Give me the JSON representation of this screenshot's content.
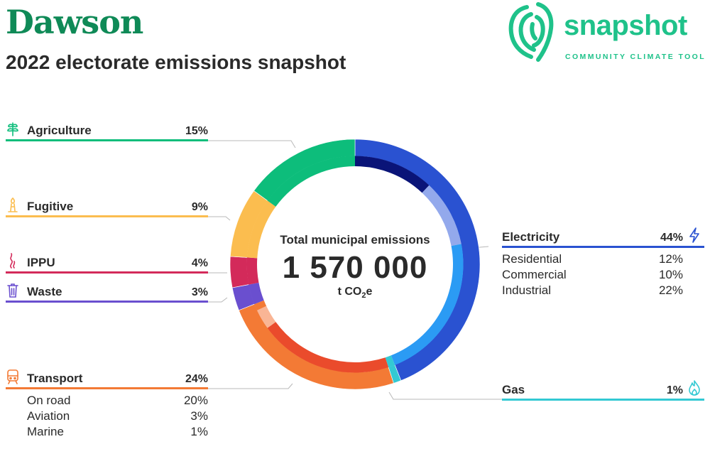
{
  "header": {
    "title": "Dawson",
    "subtitle": "2022 electorate emissions snapshot"
  },
  "logo": {
    "word": "snapshot",
    "tagline": "COMMUNITY CLIMATE TOOL",
    "color": "#1fc28a"
  },
  "center": {
    "label": "Total municipal emissions",
    "value": "1 570 000",
    "unit_prefix": "t CO",
    "unit_sub": "2",
    "unit_suffix": "e"
  },
  "chart_data": {
    "type": "pie",
    "subtype": "donut-with-inner-subsectors",
    "start_angle_deg": 0,
    "direction": "clockwise",
    "sectors": [
      {
        "key": "electricity",
        "name": "Electricity",
        "value": 44,
        "label": "44%",
        "color": "#2a52d1",
        "icon": "lightning-icon",
        "subsectors": [
          {
            "name": "Residential",
            "value": 12,
            "label": "12%",
            "color": "#0a1478"
          },
          {
            "name": "Commercial",
            "value": 10,
            "label": "10%",
            "color": "#93a9ec"
          },
          {
            "name": "Industrial",
            "value": 22,
            "label": "22%",
            "color": "#2b9bf4"
          }
        ]
      },
      {
        "key": "gas",
        "name": "Gas",
        "value": 1,
        "label": "1%",
        "color": "#33c9d3",
        "icon": "flame-icon",
        "subsectors": [
          {
            "name": "",
            "value": 1,
            "label": "",
            "color": "#33c9d3"
          }
        ]
      },
      {
        "key": "transport",
        "name": "Transport",
        "value": 24,
        "label": "24%",
        "color": "#f37a35",
        "icon": "train-icon",
        "subsectors": [
          {
            "name": "On road",
            "value": 20,
            "label": "20%",
            "color": "#ea4b2c"
          },
          {
            "name": "Aviation",
            "value": 3,
            "label": "3%",
            "color": "#f9b595"
          },
          {
            "name": "Marine",
            "value": 1,
            "label": "1%",
            "color": "#f37a35"
          }
        ]
      },
      {
        "key": "waste",
        "name": "Waste",
        "value": 3,
        "label": "3%",
        "color": "#6a4fcf",
        "icon": "bin-icon",
        "subsectors": [
          {
            "name": "",
            "value": 3,
            "label": "",
            "color": "#6a4fcf"
          }
        ]
      },
      {
        "key": "ippu",
        "name": "IPPU",
        "value": 4,
        "label": "4%",
        "color": "#d32a5a",
        "icon": "smoke-icon",
        "subsectors": [
          {
            "name": "",
            "value": 4,
            "label": "",
            "color": "#d32a5a"
          }
        ]
      },
      {
        "key": "fugitive",
        "name": "Fugitive",
        "value": 9,
        "label": "9%",
        "color": "#fbbd4f",
        "icon": "gas-flare-icon",
        "subsectors": [
          {
            "name": "",
            "value": 9,
            "label": "",
            "color": "#fbbd4f"
          }
        ]
      },
      {
        "key": "agriculture",
        "name": "Agriculture",
        "value": 15,
        "label": "15%",
        "color": "#0dbd7b",
        "icon": "plant-icon",
        "subsectors": [
          {
            "name": "",
            "value": 15,
            "label": "",
            "color": "#0dbd7b"
          }
        ]
      }
    ]
  }
}
